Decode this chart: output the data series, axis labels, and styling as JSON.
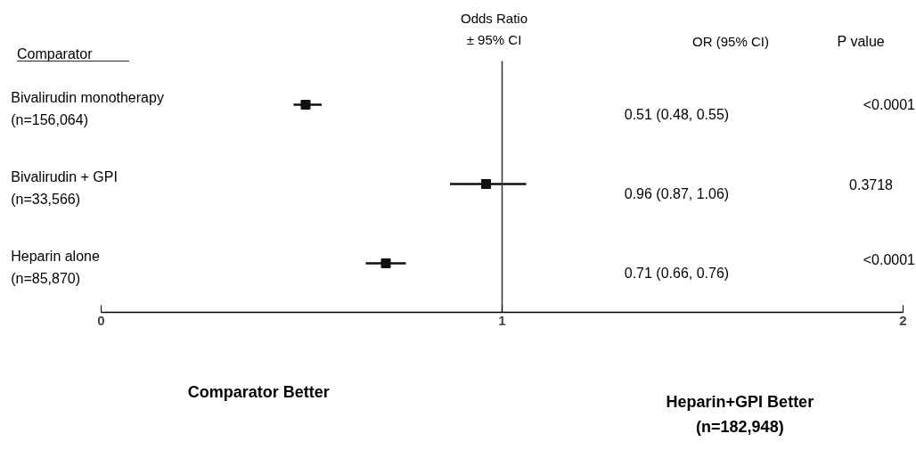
{
  "chart_data": {
    "type": "scatter",
    "orientation": "horizontal",
    "title": "Odds Ratio\n± 95% CI",
    "ylabel": "Comparator",
    "categories": [
      "Bivalirudin monotherapy\n(n=156,064)",
      "Bivalirudin + GPI\n(n=33,566)",
      "Heparin alone\n(n=85,870)"
    ],
    "values": [
      0.51,
      0.96,
      0.71
    ],
    "errors": [
      [
        0.48,
        0.55
      ],
      [
        0.87,
        1.06
      ],
      [
        0.66,
        0.76
      ]
    ],
    "color": "#111111",
    "marker": "square",
    "grid": false,
    "xlim": [
      0,
      2
    ],
    "xticks": [
      0,
      1,
      2
    ],
    "ref_lines": [
      {
        "axis": "x",
        "value": 1,
        "label": null
      }
    ],
    "annotations": [
      "OR (95% CI)",
      "P  value",
      "0.51 (0.48,  0.55)",
      "0.96 (0.87,  1.06)",
      "0.71 (0.66,  0.76)",
      "<0.0001",
      "0.3718",
      "<0.0001",
      "Comparator Better",
      "Heparin+GPI Better\n(n=182,948)"
    ]
  }
}
